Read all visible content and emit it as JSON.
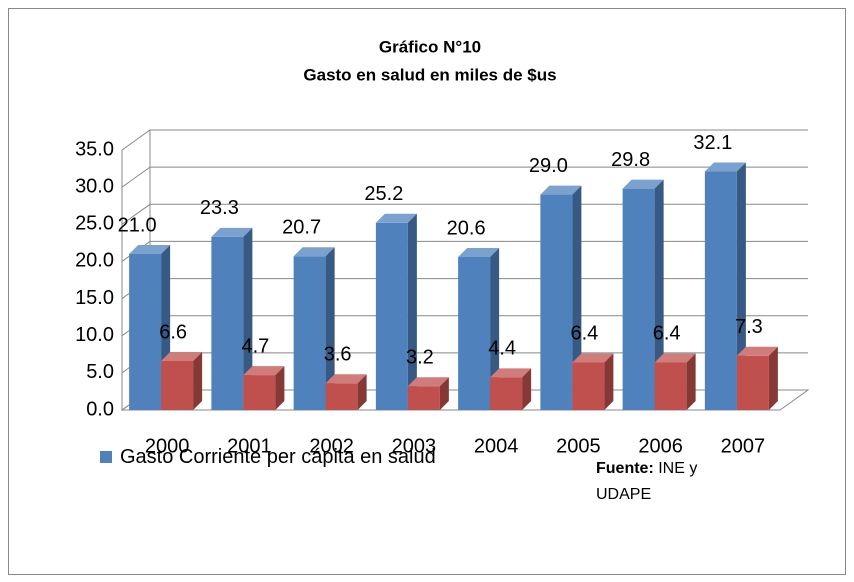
{
  "chart_data": {
    "type": "bar3d",
    "title": "Gráfico N°10",
    "subtitle": "Gasto en salud en miles de $us",
    "categories": [
      "2000",
      "2001",
      "2002",
      "2003",
      "2004",
      "2005",
      "2006",
      "2007"
    ],
    "series": [
      {
        "name": "Gasto Corriente per cápita en salud",
        "color": "#4f81bd",
        "values": [
          21,
          23.3,
          20.7,
          25.2,
          20.6,
          29,
          29.8,
          32.1
        ],
        "value_labels": [
          "21.0",
          "23.3",
          "20.7",
          "25.2",
          "20.6",
          "29.0",
          "29.8",
          "32.1"
        ]
      },
      {
        "color": "#c0504d",
        "values": [
          6.6,
          4.7,
          3.6,
          3.2,
          4.4,
          6.4,
          6.4,
          7.3
        ]
      }
    ],
    "ylim": [
      0,
      35
    ],
    "yticks": [
      {
        "value": 0,
        "label": "0.0"
      },
      {
        "value": 5,
        "label": "5.0"
      },
      {
        "value": 10,
        "label": "10.0"
      },
      {
        "value": 15,
        "label": "15.0"
      },
      {
        "value": 20,
        "label": "20.0"
      },
      {
        "value": 25,
        "label": "25.0"
      },
      {
        "value": 30,
        "label": "30.0"
      },
      {
        "value": 35,
        "label": "35.0"
      }
    ],
    "grid": true,
    "legend": "bottom-left",
    "source": {
      "label": "Fuente:",
      "text": "INE y UDAPE"
    }
  }
}
